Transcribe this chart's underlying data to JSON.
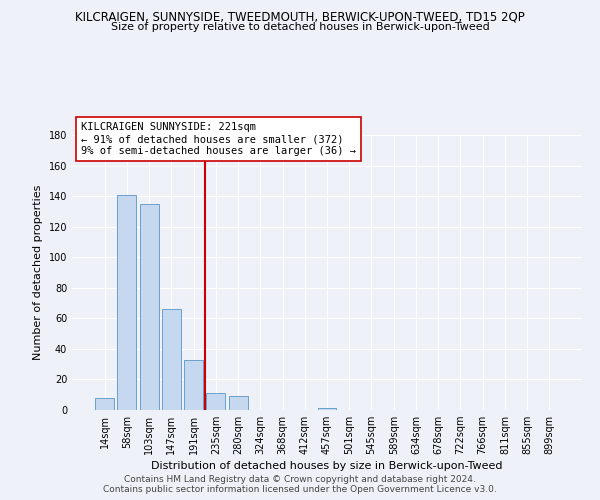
{
  "title": "KILCRAIGEN, SUNNYSIDE, TWEEDMOUTH, BERWICK-UPON-TWEED, TD15 2QP",
  "subtitle": "Size of property relative to detached houses in Berwick-upon-Tweed",
  "xlabel": "Distribution of detached houses by size in Berwick-upon-Tweed",
  "ylabel": "Number of detached properties",
  "footer1": "Contains HM Land Registry data © Crown copyright and database right 2024.",
  "footer2": "Contains public sector information licensed under the Open Government Licence v3.0.",
  "annotation_title": "KILCRAIGEN SUNNYSIDE: 221sqm",
  "annotation_line1": "← 91% of detached houses are smaller (372)",
  "annotation_line2": "9% of semi-detached houses are larger (36) →",
  "categories": [
    "14sqm",
    "58sqm",
    "103sqm",
    "147sqm",
    "191sqm",
    "235sqm",
    "280sqm",
    "324sqm",
    "368sqm",
    "412sqm",
    "457sqm",
    "501sqm",
    "545sqm",
    "589sqm",
    "634sqm",
    "678sqm",
    "722sqm",
    "766sqm",
    "811sqm",
    "855sqm",
    "899sqm"
  ],
  "values": [
    8,
    141,
    135,
    66,
    33,
    11,
    9,
    0,
    0,
    0,
    1,
    0,
    0,
    0,
    0,
    0,
    0,
    0,
    0,
    0,
    0
  ],
  "bar_color": "#c5d8f0",
  "bar_edge_color": "#6aa0cd",
  "vline_color": "#cc0000",
  "annotation_box_edge": "#cc0000",
  "annotation_box_face": "#ffffff",
  "background_color": "#eef2f8",
  "ylim": [
    0,
    180
  ],
  "yticks": [
    0,
    20,
    40,
    60,
    80,
    100,
    120,
    140,
    160,
    180
  ],
  "title_fontsize": 8.5,
  "subtitle_fontsize": 8,
  "xlabel_fontsize": 8,
  "ylabel_fontsize": 8,
  "tick_fontsize": 7,
  "annotation_fontsize": 7.5,
  "footer_fontsize": 6.5,
  "grid_color": "#ffffff",
  "vline_x": 4.5
}
